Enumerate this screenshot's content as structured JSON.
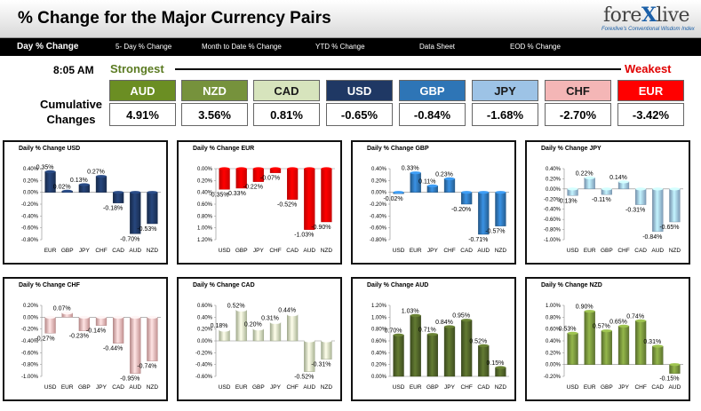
{
  "header": {
    "title": "% Change for the Major Currency Pairs",
    "logo": {
      "prefix": "fore",
      "x": "X",
      "suffix": "live",
      "tagline": "Forexlive's Conventional Wisdom Index"
    }
  },
  "navbar": {
    "items": [
      "Day % Change",
      "5- Day % Change",
      "Month to Date % Change",
      "YTD % Change",
      "Data Sheet",
      "EOD % Change"
    ]
  },
  "strength": {
    "time": "8:05 AM",
    "strongest_label": "Strongest",
    "weakest_label": "Weakest",
    "cumulative_label": "Cumulative Changes",
    "currencies": [
      {
        "code": "AUD",
        "pct": "4.91%",
        "color": "#6b8e23"
      },
      {
        "code": "NZD",
        "pct": "3.56%",
        "color": "#76923c"
      },
      {
        "code": "CAD",
        "pct": "0.81%",
        "color": "#d7e4bd"
      },
      {
        "code": "USD",
        "pct": "-0.65%",
        "color": "#1f3864"
      },
      {
        "code": "GBP",
        "pct": "-0.84%",
        "color": "#2e75b6"
      },
      {
        "code": "JPY",
        "pct": "-1.68%",
        "color": "#9dc3e6"
      },
      {
        "code": "CHF",
        "pct": "-2.70%",
        "color": "#f4b6b6"
      },
      {
        "code": "EUR",
        "pct": "-3.42%",
        "color": "#ff0000"
      }
    ]
  },
  "chart_data": [
    {
      "type": "bar",
      "title": "Daily % Change USD",
      "color": "#1f3864",
      "categories": [
        "EUR",
        "GBP",
        "JPY",
        "CHF",
        "CAD",
        "AUD",
        "NZD"
      ],
      "values": [
        0.35,
        0.02,
        0.13,
        0.27,
        -0.18,
        -0.7,
        -0.53
      ],
      "labels": [
        "0.35%",
        "0.02%",
        "0.13%",
        "0.27%",
        "-0.18%",
        "-0.70%",
        "-0.53%"
      ],
      "ylim": [
        -0.8,
        0.4
      ],
      "ticks": [
        "0.40%",
        "0.20%",
        "0.00%",
        "-0.20%",
        "-0.40%",
        "-0.60%",
        "-0.80%"
      ]
    },
    {
      "type": "bar",
      "title": "Daily % Change EUR",
      "color": "#ff0000",
      "categories": [
        "USD",
        "GBP",
        "JPY",
        "CHF",
        "CAD",
        "AUD",
        "NZD"
      ],
      "values": [
        -0.35,
        -0.33,
        -0.22,
        -0.07,
        -0.52,
        -1.03,
        -0.9
      ],
      "labels": [
        "-0.35%",
        "-0.33%",
        "-0.22%",
        "-0.07%",
        "-0.52%",
        "-1.03%",
        "-0.90%"
      ],
      "ylim": [
        -1.2,
        0.0
      ],
      "ticks": [
        "0.00%",
        "0.20%",
        "0.40%",
        "0.60%",
        "0.80%",
        "1.00%",
        "1.20%"
      ]
    },
    {
      "type": "bar",
      "title": "Daily % Change GBP",
      "color": "#2e75b6",
      "categories": [
        "USD",
        "EUR",
        "JPY",
        "CHF",
        "CAD",
        "AUD",
        "NZD"
      ],
      "values": [
        -0.02,
        0.33,
        0.11,
        0.23,
        -0.2,
        -0.71,
        -0.57
      ],
      "labels": [
        "-0.02%",
        "0.33%",
        "0.11%",
        "0.23%",
        "-0.20%",
        "-0.71%",
        "-0.57%"
      ],
      "ylim": [
        -0.8,
        0.4
      ],
      "ticks": [
        "0.40%",
        "0.20%",
        "0.00%",
        "-0.20%",
        "-0.40%",
        "-0.60%",
        "-0.80%"
      ]
    },
    {
      "type": "bar",
      "title": "Daily % Change JPY",
      "color": "#9dc3e6",
      "categories": [
        "USD",
        "EUR",
        "GBP",
        "CHF",
        "CAD",
        "AUD",
        "NZD"
      ],
      "values": [
        -0.13,
        0.22,
        -0.11,
        0.14,
        -0.31,
        -0.84,
        -0.65
      ],
      "labels": [
        "-0.13%",
        "0.22%",
        "-0.11%",
        "0.14%",
        "-0.31%",
        "-0.84%",
        "-0.65%"
      ],
      "ylim": [
        -1.0,
        0.4
      ],
      "ticks": [
        "0.40%",
        "0.20%",
        "0.00%",
        "-0.20%",
        "-0.40%",
        "-0.60%",
        "-0.80%",
        "-1.00%"
      ]
    },
    {
      "type": "bar",
      "title": "Daily % Change CHF",
      "color": "#f4b6b6",
      "categories": [
        "USD",
        "EUR",
        "GBP",
        "JPY",
        "CAD",
        "AUD",
        "NZD"
      ],
      "values": [
        -0.27,
        0.07,
        -0.23,
        -0.14,
        -0.44,
        -0.95,
        -0.74
      ],
      "labels": [
        "-0.27%",
        "0.07%",
        "-0.23%",
        "-0.14%",
        "-0.44%",
        "-0.95%",
        "-0.74%"
      ],
      "ylim": [
        -1.0,
        0.2
      ],
      "ticks": [
        "0.20%",
        "0.00%",
        "-0.20%",
        "-0.40%",
        "-0.60%",
        "-0.80%",
        "-1.00%"
      ]
    },
    {
      "type": "bar",
      "title": "Daily % Change CAD",
      "color": "#d7e4bd",
      "categories": [
        "USD",
        "EUR",
        "GBP",
        "JPY",
        "CHF",
        "AUD",
        "NZD"
      ],
      "values": [
        0.18,
        0.52,
        0.2,
        0.31,
        0.44,
        -0.52,
        -0.31
      ],
      "labels": [
        "0.18%",
        "0.52%",
        "0.20%",
        "0.31%",
        "0.44%",
        "-0.52%",
        "-0.31%"
      ],
      "ylim": [
        -0.6,
        0.6
      ],
      "ticks": [
        "0.60%",
        "0.40%",
        "0.20%",
        "0.00%",
        "-0.20%",
        "-0.40%",
        "-0.60%"
      ]
    },
    {
      "type": "bar",
      "title": "Daily % Change AUD",
      "color": "#4f6228",
      "categories": [
        "USD",
        "EUR",
        "GBP",
        "JPY",
        "CHF",
        "CAD",
        "NZD"
      ],
      "values": [
        0.7,
        1.03,
        0.71,
        0.84,
        0.95,
        0.52,
        0.15
      ],
      "labels": [
        "0.70%",
        "1.03%",
        "0.71%",
        "0.84%",
        "0.95%",
        "0.52%",
        "0.15%"
      ],
      "ylim": [
        0.0,
        1.2
      ],
      "ticks": [
        "1.20%",
        "1.00%",
        "0.80%",
        "0.60%",
        "0.40%",
        "0.20%",
        "0.00%"
      ]
    },
    {
      "type": "bar",
      "title": "Daily % Change NZD",
      "color": "#76923c",
      "categories": [
        "USD",
        "EUR",
        "GBP",
        "JPY",
        "CHF",
        "CAD",
        "AUD"
      ],
      "values": [
        0.53,
        0.9,
        0.57,
        0.65,
        0.74,
        0.31,
        -0.15
      ],
      "labels": [
        "0.53%",
        "0.90%",
        "0.57%",
        "0.65%",
        "0.74%",
        "0.31%",
        "-0.15%"
      ],
      "ylim": [
        -0.2,
        1.0
      ],
      "ticks": [
        "1.00%",
        "0.80%",
        "0.60%",
        "0.40%",
        "0.20%",
        "0.00%",
        "-0.20%"
      ]
    }
  ]
}
